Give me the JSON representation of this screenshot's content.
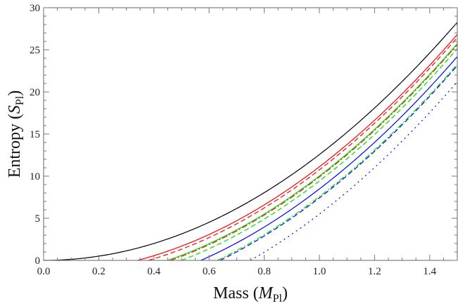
{
  "chart_data": {
    "type": "line",
    "title": "",
    "xlabel": "Mass (M_Pl)",
    "ylabel": "Entropy (S_Pl)",
    "xlabel_parts": {
      "main": "Mass (",
      "italic": "M",
      "sub": "Pl",
      "close": ")"
    },
    "ylabel_parts": {
      "main": "Entropy (",
      "italic": "S",
      "sub": "Pl",
      "close": ")"
    },
    "xlim": [
      0.0,
      1.5
    ],
    "ylim": [
      0,
      30
    ],
    "xticks": [
      "0.0",
      "0.2",
      "0.4",
      "0.6",
      "0.8",
      "1.0",
      "1.2",
      "1.4"
    ],
    "yticks": [
      "0",
      "5",
      "10",
      "15",
      "20",
      "25",
      "30"
    ],
    "grid": false,
    "legend": null,
    "model": "S = 4*pi*(M^2 - M0^2) for M >= M0",
    "series": [
      {
        "name": "black-solid",
        "color": "#000000",
        "style": "solid",
        "M0": 0.0,
        "values_at_x": {
          "0.0": 0,
          "0.5": 3.1,
          "1.0": 12.6,
          "1.5": 28.3
        }
      },
      {
        "name": "red-solid",
        "color": "#ff0000",
        "style": "solid",
        "M0": 0.34,
        "values_at_x": {
          "0.34": 0,
          "1.0": 11.1,
          "1.5": 26.8
        }
      },
      {
        "name": "red-dashed",
        "color": "#ff0000",
        "style": "dashed",
        "M0": 0.38,
        "values_at_x": {
          "0.38": 0,
          "1.0": 10.8,
          "1.5": 26.5
        }
      },
      {
        "name": "red-dashdot",
        "color": "#ff0000",
        "style": "dashdot",
        "M0": 0.46,
        "values_at_x": {
          "0.46": 0,
          "1.0": 9.9,
          "1.5": 25.6
        }
      },
      {
        "name": "green-solid",
        "color": "#00dd00",
        "style": "solid",
        "M0": 0.45,
        "values_at_x": {
          "0.45": 0,
          "1.0": 10.0,
          "1.5": 25.7
        }
      },
      {
        "name": "green-dashed",
        "color": "#00dd00",
        "style": "dashed",
        "M0": 0.5,
        "values_at_x": {
          "0.50": 0,
          "1.0": 9.4,
          "1.5": 25.1
        }
      },
      {
        "name": "green-dashdot",
        "color": "#00dd00",
        "style": "dashdot",
        "M0": 0.63,
        "values_at_x": {
          "0.63": 0,
          "1.0": 7.6,
          "1.5": 23.3
        }
      },
      {
        "name": "blue-solid",
        "color": "#0000ff",
        "style": "solid",
        "M0": 0.57,
        "values_at_x": {
          "0.57": 0,
          "1.0": 8.5,
          "1.5": 24.2
        }
      },
      {
        "name": "blue-dashed",
        "color": "#0000ff",
        "style": "dashed",
        "M0": 0.64,
        "values_at_x": {
          "0.64": 0,
          "1.0": 7.4,
          "1.5": 23.1
        }
      },
      {
        "name": "blue-dotted",
        "color": "#0000ff",
        "style": "dotted",
        "M0": 0.75,
        "values_at_x": {
          "0.75": 0,
          "1.0": 5.5,
          "1.5": 21.2
        }
      }
    ]
  }
}
